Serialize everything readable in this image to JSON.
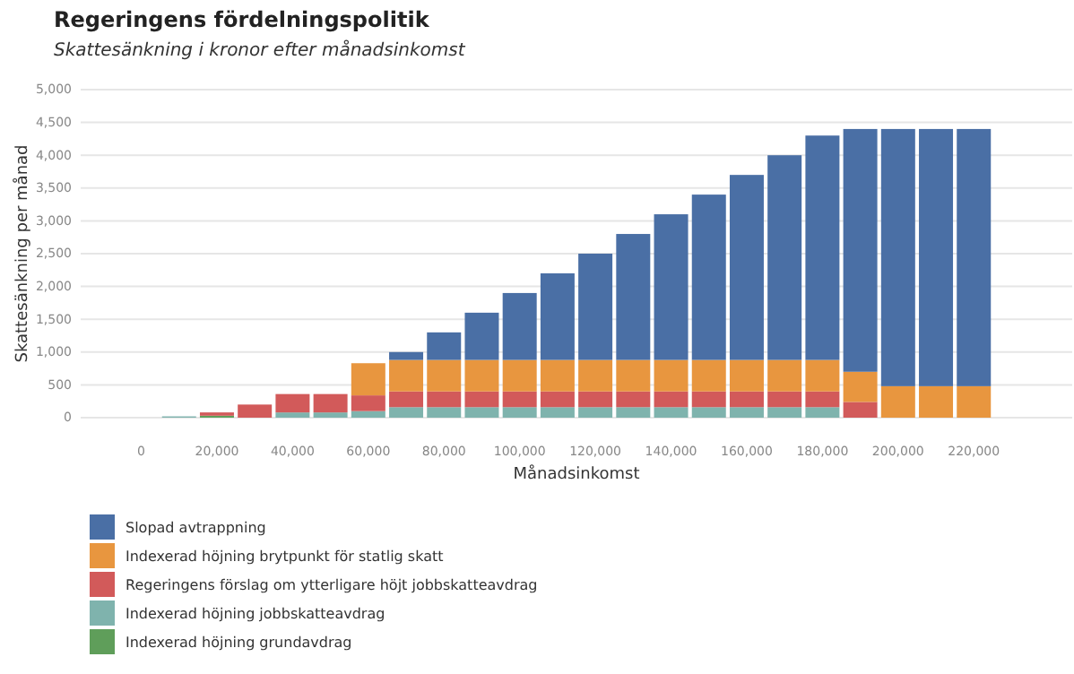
{
  "chart_data": {
    "type": "bar",
    "title": "Regeringens fördelningspolitik",
    "subtitle": "Skattesänkning i kronor efter månadsinkomst",
    "xlabel": "Månadsinkomst",
    "ylabel": "Skattesänkning per månad",
    "x": [
      10000,
      20000,
      30000,
      40000,
      50000,
      60000,
      70000,
      80000,
      90000,
      100000,
      110000,
      120000,
      130000,
      140000,
      150000,
      160000,
      170000,
      180000,
      190000,
      200000,
      210000,
      220000
    ],
    "stacked": true,
    "series": [
      {
        "name": "Indexerad höjning grundavdrag",
        "color": "#5f9e5a",
        "values": [
          0,
          30,
          0,
          0,
          0,
          0,
          0,
          0,
          0,
          0,
          0,
          0,
          0,
          0,
          0,
          0,
          0,
          0,
          0,
          0,
          0,
          0
        ]
      },
      {
        "name": "Indexerad höjning jobbskatteavdrag",
        "color": "#7fb3ad",
        "values": [
          20,
          0,
          0,
          80,
          80,
          100,
          160,
          160,
          160,
          160,
          160,
          160,
          160,
          160,
          160,
          160,
          160,
          160,
          0,
          0,
          0,
          0
        ]
      },
      {
        "name": "Regeringens förslag om ytterligare höjt jobbskatteavdrag",
        "color": "#d25a5a",
        "values": [
          0,
          50,
          200,
          280,
          280,
          240,
          240,
          240,
          240,
          240,
          240,
          240,
          240,
          240,
          240,
          240,
          240,
          240,
          240,
          0,
          0,
          0
        ]
      },
      {
        "name": "Indexerad höjning brytpunkt för statlig skatt",
        "color": "#e8963f",
        "values": [
          0,
          0,
          0,
          0,
          0,
          490,
          480,
          480,
          480,
          480,
          480,
          480,
          480,
          480,
          480,
          480,
          480,
          480,
          460,
          480,
          480,
          480
        ]
      },
      {
        "name": "Slopad avtrappning",
        "color": "#4a6fa5",
        "values": [
          0,
          0,
          0,
          0,
          0,
          0,
          120,
          420,
          720,
          1020,
          1320,
          1620,
          1920,
          2220,
          2520,
          2820,
          3120,
          3420,
          3700,
          3920,
          3920,
          3920
        ]
      }
    ],
    "xlim": [
      -16000,
      246000
    ],
    "xticks": [
      0,
      {
        "value": 20000,
        "label": "20,000"
      },
      {
        "value": 40000,
        "label": "40,000"
      },
      {
        "value": 60000,
        "label": "60,000"
      },
      {
        "value": 80000,
        "label": "80,000"
      },
      {
        "value": 100000,
        "label": "100,000"
      },
      {
        "value": 120000,
        "label": "120,000"
      },
      {
        "value": 140000,
        "label": "140,000"
      },
      {
        "value": 160000,
        "label": "160,000"
      },
      {
        "value": 180000,
        "label": "180,000"
      },
      {
        "value": 200000,
        "label": "200,000"
      },
      {
        "value": 220000,
        "label": "220,000"
      }
    ],
    "ylim": [
      0,
      5000
    ],
    "yticks": [
      0,
      500,
      {
        "value": 1000,
        "label": "1,000"
      },
      {
        "value": 1500,
        "label": "1,500"
      },
      {
        "value": 2000,
        "label": "2,000"
      },
      {
        "value": 2500,
        "label": "2,500"
      },
      {
        "value": 3000,
        "label": "3,000"
      },
      {
        "value": 3500,
        "label": "3,500"
      },
      {
        "value": 4000,
        "label": "4,000"
      },
      {
        "value": 4500,
        "label": "4,500"
      },
      {
        "value": 5000,
        "label": "5,000"
      }
    ],
    "grid": "y",
    "legend": "bottom"
  }
}
